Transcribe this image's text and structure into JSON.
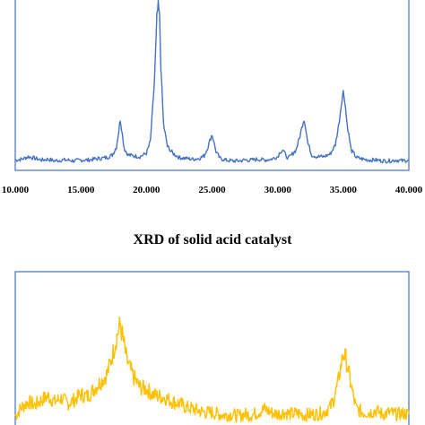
{
  "chart_data": [
    {
      "type": "line",
      "title": "",
      "xlabel": "",
      "ylabel": "",
      "xlim": [
        10,
        40
      ],
      "tick_values": [
        10,
        15,
        20,
        25,
        30,
        35,
        40
      ],
      "tick_labels": [
        "10.000",
        "15.000",
        "20.000",
        "25.000",
        "30.000",
        "35.000",
        "40.000"
      ],
      "grid": false,
      "color": "#4472c4",
      "series": [
        {
          "x": [
            10,
            10.5,
            11,
            11.5,
            12,
            12.5,
            13,
            13.5,
            14,
            14.5,
            15,
            15.5,
            16,
            16.5,
            17,
            17.4,
            17.7,
            17.9,
            18.0,
            18.1,
            18.3,
            18.6,
            19,
            19.5,
            20,
            20.3,
            20.6,
            20.8,
            20.9,
            21.0,
            21.1,
            21.3,
            21.6,
            22,
            22.5,
            23,
            23.5,
            24,
            24.4,
            24.7,
            24.9,
            25.0,
            25.1,
            25.3,
            25.6,
            26,
            26.5,
            27,
            27.5,
            28,
            28.5,
            29,
            29.5,
            30.0,
            30.2,
            30.4,
            30.6,
            30.8,
            31,
            31.4,
            31.7,
            31.9,
            32.0,
            32.1,
            32.3,
            32.6,
            33,
            33.5,
            34,
            34.4,
            34.7,
            34.9,
            35.0,
            35.1,
            35.3,
            35.6,
            36,
            36.5,
            37,
            37.5,
            38,
            38.5,
            39,
            39.5,
            40
          ],
          "y": [
            10,
            11,
            14,
            12,
            10,
            11,
            9,
            10,
            10,
            9,
            10,
            10,
            11,
            12,
            13,
            16,
            25,
            45,
            58,
            48,
            24,
            16,
            15,
            14,
            18,
            32,
            100,
            178,
            192,
            178,
            120,
            52,
            26,
            18,
            13,
            12,
            11,
            12,
            15,
            26,
            36,
            40,
            34,
            20,
            12,
            10,
            9,
            9,
            10,
            10,
            11,
            10,
            11,
            14,
            20,
            22,
            16,
            12,
            15,
            22,
            38,
            52,
            58,
            52,
            30,
            16,
            14,
            14,
            17,
            28,
            56,
            82,
            90,
            82,
            52,
            22,
            13,
            11,
            10,
            10,
            9,
            9,
            10,
            9,
            10
          ]
        }
      ]
    },
    {
      "type": "line",
      "title": "XRD of solid acid catalyst",
      "xlabel": "",
      "ylabel": "",
      "xlim": [
        10,
        40
      ],
      "grid": false,
      "color": "#ffc000",
      "series": [
        {
          "x": [
            10,
            10.5,
            11,
            11.5,
            12,
            12.5,
            13,
            13.5,
            14,
            14.5,
            15,
            15.5,
            16,
            16.5,
            17,
            17.3,
            17.6,
            17.8,
            18.0,
            18.2,
            18.5,
            19,
            19.5,
            20,
            20.5,
            21,
            21.5,
            22,
            22.5,
            23,
            23.5,
            24,
            24.5,
            25,
            25.5,
            26,
            26.5,
            27,
            27.5,
            28,
            28.5,
            29,
            29.5,
            30,
            30.5,
            31,
            31.5,
            32,
            32.5,
            33,
            33.5,
            34,
            34.3,
            34.6,
            34.8,
            35.0,
            35.2,
            35.5,
            35.8,
            36,
            36.5,
            37,
            37.5,
            38,
            38.5,
            39,
            39.5,
            40
          ],
          "y": [
            8,
            18,
            24,
            20,
            26,
            30,
            24,
            28,
            22,
            26,
            32,
            30,
            38,
            46,
            55,
            70,
            88,
            100,
            110,
            95,
            70,
            52,
            40,
            38,
            32,
            30,
            28,
            24,
            22,
            18,
            16,
            14,
            12,
            12,
            10,
            9,
            10,
            8,
            10,
            9,
            12,
            16,
            12,
            10,
            12,
            10,
            11,
            9,
            10,
            10,
            12,
            18,
            28,
            45,
            62,
            78,
            72,
            50,
            28,
            16,
            12,
            12,
            14,
            10,
            12,
            10,
            11,
            10
          ]
        }
      ]
    }
  ]
}
